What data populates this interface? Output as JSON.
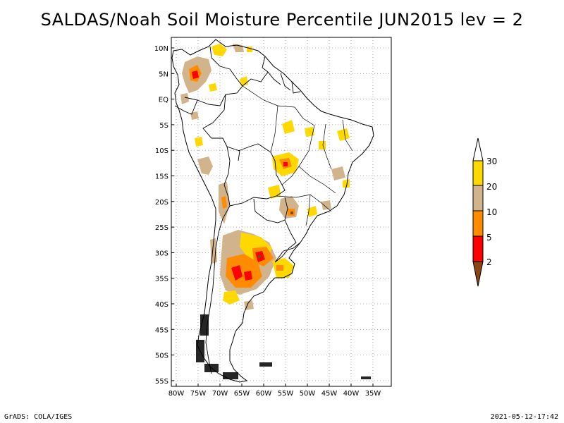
{
  "title": "SALDAS/Noah Soil Moisture Percentile JUN2015 lev = 2",
  "footer": {
    "credit": "GrADS: COLA/IGES",
    "timestamp": "2021-05-12-17:42"
  },
  "axes": {
    "lat_ticks": [
      "10N",
      "5N",
      "EQ",
      "5S",
      "10S",
      "15S",
      "20S",
      "25S",
      "30S",
      "35S",
      "40S",
      "45S",
      "50S",
      "55S"
    ],
    "lon_ticks": [
      "80W",
      "75W",
      "70W",
      "65W",
      "60W",
      "55W",
      "50W",
      "45W",
      "40W",
      "35W"
    ]
  },
  "legend": {
    "labels": [
      "30",
      "20",
      "10",
      "5",
      "2"
    ],
    "colors": {
      "above30": "#ffffff",
      "20_30": "#fed800",
      "10_20": "#d2b48c",
      "5_10": "#ff8c00",
      "2_5": "#ff0000",
      "below2": "#8b4513"
    }
  },
  "map": {
    "region": "South America",
    "frame_color": "#000000",
    "grid_color": "#9a9a9a",
    "coast_color": "#000000"
  }
}
